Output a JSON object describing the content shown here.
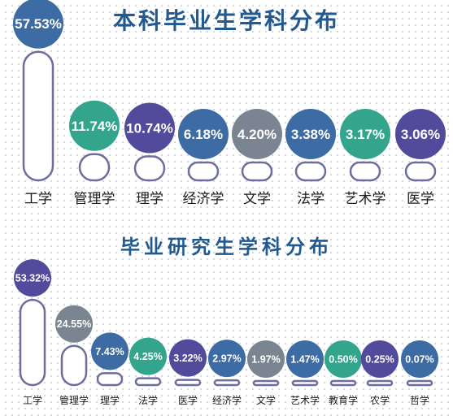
{
  "chart_data": [
    {
      "type": "bar",
      "title": "本科毕业生学科分布",
      "categories": [
        "工学",
        "管理学",
        "理学",
        "经济学",
        "文学",
        "法学",
        "艺术学",
        "医学"
      ],
      "values": [
        57.53,
        11.74,
        10.74,
        6.18,
        4.2,
        3.38,
        3.17,
        3.06
      ],
      "value_labels": [
        "57.53%",
        "11.74%",
        "10.74%",
        "6.18%",
        "4.20%",
        "3.38%",
        "3.17%",
        "3.06%"
      ],
      "colors": [
        "#3d6ba3",
        "#34a58d",
        "#524a9a",
        "#3d6ba3",
        "#7b8591",
        "#3d6ba3",
        "#34a58d",
        "#524a9a"
      ],
      "ylim": [
        0,
        60
      ],
      "grid": false
    },
    {
      "type": "bar",
      "title": "毕业研究生学科分布",
      "categories": [
        "工学",
        "管理学",
        "理学",
        "法学",
        "医学",
        "经济学",
        "文学",
        "艺术学",
        "教育学",
        "农学",
        "哲学"
      ],
      "values": [
        53.32,
        24.55,
        7.43,
        4.25,
        3.22,
        2.97,
        1.97,
        1.47,
        0.5,
        0.25,
        0.07
      ],
      "value_labels": [
        "53.32%",
        "24.55%",
        "7.43%",
        "4.25%",
        "3.22%",
        "2.97%",
        "1.97%",
        "1.47%",
        "0.50%",
        "0.25%",
        "0.07%"
      ],
      "colors": [
        "#524a9a",
        "#7b8591",
        "#3d6ba3",
        "#34a58d",
        "#524a9a",
        "#3d6ba3",
        "#7b8591",
        "#3d6ba3",
        "#34a58d",
        "#524a9a",
        "#3d6ba3"
      ],
      "ylim": [
        0,
        60
      ],
      "grid": false
    }
  ],
  "styles": {
    "capsule_stroke": "#6d6e9c",
    "capsule_fill": "#ffffff",
    "title_color": "#22598f",
    "label_color": "#1c1c1c"
  }
}
